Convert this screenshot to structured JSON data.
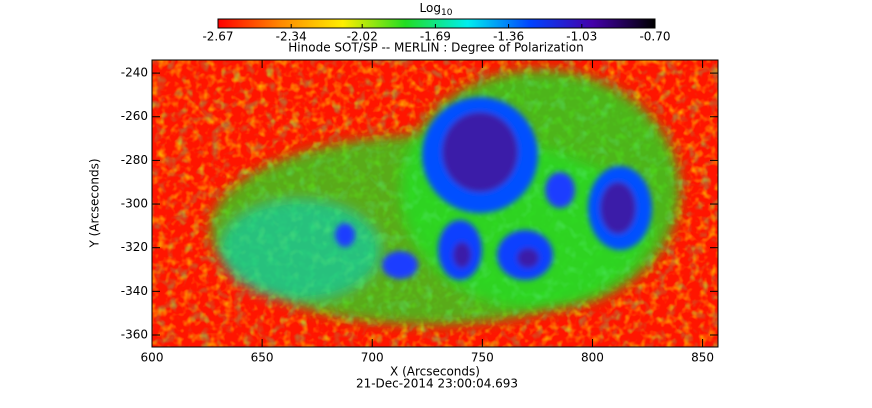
{
  "chart_data": {
    "type": "heatmap",
    "title": "Hinode SOT/SP -- MERLIN : Degree of Polarization",
    "x_label": "X (Arcseconds)",
    "y_label": "Y (Arcseconds)",
    "timestamp": "21-Dec-2014 23:00:04.693",
    "xlim": [
      600,
      857
    ],
    "xticks": [
      600,
      650,
      700,
      750,
      800,
      850
    ],
    "ylim": [
      -365.5,
      -234
    ],
    "yticks": [
      -360,
      -340,
      -320,
      -300,
      -280,
      -260,
      -240
    ],
    "colorbar_label": "Log",
    "colorbar_label_sub": "10",
    "colorbar_lim": [
      -2.67,
      -0.7
    ],
    "colorbar_ticks": [
      -2.67,
      -2.34,
      -2.02,
      -1.69,
      -1.36,
      -1.03,
      {
        "value": -0.7,
        "label": "-0.70"
      }
    ],
    "colormap": [
      "#ff0000",
      "#ff8800",
      "#ffee00",
      "#22dd22",
      "#00eeee",
      "#0044ff",
      "#4400aa",
      "#000000"
    ]
  }
}
